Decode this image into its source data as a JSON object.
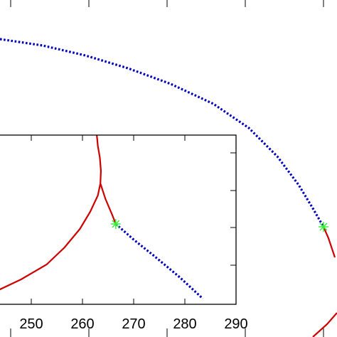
{
  "colors": {
    "frame": "#000000",
    "solid_curve": "#cc0000",
    "dotted_curve": "#0000bb",
    "marker": "#33ee33"
  },
  "chart_data": [
    {
      "type": "line",
      "panel": "main",
      "title": "",
      "xlabel": "",
      "ylabel": "",
      "series": [
        {
          "style": "dotted",
          "color": "#0000bb",
          "points": [
            [
              0,
              55
            ],
            [
              60,
              64
            ],
            [
              120,
              78
            ],
            [
              180,
              96
            ],
            [
              240,
              118
            ],
            [
              300,
              146
            ],
            [
              350,
              180
            ],
            [
              390,
              220
            ],
            [
              420,
              260
            ],
            [
              440,
              293
            ],
            [
              455,
              319
            ]
          ]
        },
        {
          "style": "solid",
          "color": "#cc0000",
          "points": [
            [
              455,
              319
            ],
            [
              462,
              335
            ],
            [
              467,
              350
            ],
            [
              471,
              362
            ]
          ]
        },
        {
          "style": "solid",
          "color": "#cc0000",
          "points": [
            [
              440,
              474
            ],
            [
              460,
              456
            ],
            [
              474,
              440
            ]
          ]
        }
      ],
      "markers": [
        {
          "shape": "asterisk",
          "color": "#33ee33",
          "point": [
            455,
            319
          ]
        }
      ]
    },
    {
      "type": "line",
      "panel": "inset",
      "title": "",
      "xlabel": "",
      "ylabel": "",
      "xticks": [
        "250",
        "260",
        "270",
        "280",
        "290"
      ],
      "xlim": [
        241.7,
        290
      ],
      "series": [
        {
          "style": "solid",
          "color": "#cc0000",
          "points": [
            [
              243,
              410
            ],
            [
              248,
              393
            ],
            [
              253,
              372
            ],
            [
              256.5,
              348
            ],
            [
              259.5,
              322
            ],
            [
              261.5,
              298
            ],
            [
              263.0,
              275
            ],
            [
              263.5,
              258
            ]
          ]
        },
        {
          "style": "solid",
          "color": "#cc0000",
          "points": [
            [
              263.5,
              258
            ],
            [
              263.6,
              240
            ],
            [
              263.4,
              222
            ],
            [
              263.0,
              205
            ],
            [
              262.8,
              190
            ]
          ]
        },
        {
          "style": "solid",
          "color": "#cc0000",
          "points": [
            [
              263.5,
              258
            ],
            [
              264.5,
              280
            ],
            [
              265.8,
              302
            ],
            [
              266.5,
              315
            ]
          ]
        },
        {
          "style": "dotted",
          "color": "#0000bb",
          "points": [
            [
              266.5,
              315
            ],
            [
              270,
              337
            ],
            [
              274,
              360
            ],
            [
              279,
              390
            ],
            [
              283.5,
              420
            ]
          ]
        }
      ],
      "markers": [
        {
          "shape": "asterisk",
          "color": "#33ee33",
          "point": [
            266.5,
            315
          ]
        }
      ]
    }
  ]
}
